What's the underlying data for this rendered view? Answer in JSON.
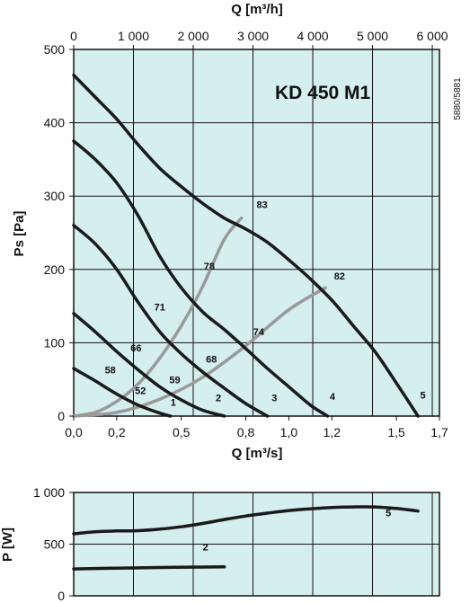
{
  "chart_data": [
    {
      "type": "line",
      "title": "KD 450 M1",
      "code": "5880/5881",
      "xlabel": "Q [m³/s]",
      "ylabel": "Ps [Pa]",
      "x2label": "Q [m³/h]",
      "xlim": [
        0,
        1.7
      ],
      "ylim": [
        0,
        500
      ],
      "x2lim": [
        0,
        6120
      ],
      "grid": true,
      "xticks": [
        0.0,
        0.2,
        0.5,
        0.8,
        1.0,
        1.2,
        1.5,
        1.7
      ],
      "xtick_labels": [
        "0,0",
        "0,2",
        "0,5",
        "0,8",
        "1,0",
        "1,2",
        "1,5",
        "1,7"
      ],
      "yticks": [
        0,
        100,
        200,
        300,
        400,
        500
      ],
      "ytick_labels": [
        "0",
        "100",
        "200",
        "300",
        "400",
        "500"
      ],
      "x2ticks": [
        0,
        1000,
        2000,
        3000,
        4000,
        5000,
        6000
      ],
      "x2tick_labels": [
        "0",
        "1 000",
        "2 000",
        "3 000",
        "4 000",
        "5 000",
        "6 000"
      ],
      "series": [
        {
          "name": "1",
          "kind": "fan",
          "label_at": [
            0.45,
            14
          ],
          "color": "#1a1a1a",
          "x": [
            0.0,
            0.1,
            0.2,
            0.3,
            0.4,
            0.45
          ],
          "y": [
            65,
            48,
            30,
            15,
            4,
            0
          ]
        },
        {
          "name": "2",
          "kind": "fan",
          "label_at": [
            0.66,
            20
          ],
          "color": "#1a1a1a",
          "x": [
            0.0,
            0.1,
            0.2,
            0.3,
            0.4,
            0.5,
            0.6,
            0.7
          ],
          "y": [
            140,
            115,
            88,
            63,
            40,
            22,
            8,
            0
          ]
        },
        {
          "name": "3",
          "kind": "fan",
          "label_at": [
            0.92,
            20
          ],
          "color": "#1a1a1a",
          "x": [
            0.0,
            0.1,
            0.2,
            0.3,
            0.4,
            0.5,
            0.6,
            0.7,
            0.8,
            0.9
          ],
          "y": [
            260,
            235,
            200,
            155,
            115,
            85,
            60,
            38,
            17,
            0
          ]
        },
        {
          "name": "4",
          "kind": "fan",
          "label_at": [
            1.19,
            22
          ],
          "color": "#1a1a1a",
          "x": [
            0.0,
            0.1,
            0.2,
            0.3,
            0.4,
            0.5,
            0.6,
            0.7,
            0.8,
            0.9,
            1.0,
            1.1,
            1.18
          ],
          "y": [
            375,
            350,
            318,
            273,
            218,
            175,
            142,
            118,
            92,
            65,
            40,
            15,
            0
          ]
        },
        {
          "name": "5",
          "kind": "fan",
          "label_at": [
            1.61,
            24
          ],
          "color": "#1a1a1a",
          "x": [
            0.0,
            0.1,
            0.2,
            0.3,
            0.4,
            0.5,
            0.6,
            0.7,
            0.8,
            0.9,
            1.0,
            1.1,
            1.2,
            1.3,
            1.4,
            1.5,
            1.6
          ],
          "y": [
            465,
            435,
            405,
            370,
            338,
            313,
            290,
            270,
            255,
            237,
            213,
            187,
            158,
            123,
            88,
            45,
            0
          ]
        },
        {
          "name": "83",
          "kind": "system",
          "label_at": [
            0.85,
            284
          ],
          "color": "#999999",
          "x": [
            0.0,
            0.1,
            0.2,
            0.3,
            0.4,
            0.5,
            0.6,
            0.7,
            0.78
          ],
          "y": [
            0,
            5,
            20,
            44,
            79,
            123,
            177,
            241,
            270
          ]
        },
        {
          "name": "82",
          "kind": "system",
          "label_at": [
            1.21,
            186
          ],
          "color": "#999999",
          "x": [
            0.0,
            0.2,
            0.4,
            0.6,
            0.8,
            1.0,
            1.17
          ],
          "y": [
            0,
            5,
            23,
            53,
            96,
            145,
            175
          ]
        }
      ],
      "annotations": [
        {
          "text": "78",
          "x": 0.63,
          "y": 200
        },
        {
          "text": "71",
          "x": 0.4,
          "y": 144
        },
        {
          "text": "74",
          "x": 0.86,
          "y": 110
        },
        {
          "text": "66",
          "x": 0.29,
          "y": 88
        },
        {
          "text": "68",
          "x": 0.64,
          "y": 73
        },
        {
          "text": "58",
          "x": 0.17,
          "y": 58
        },
        {
          "text": "52",
          "x": 0.31,
          "y": 30
        },
        {
          "text": "59",
          "x": 0.47,
          "y": 45
        }
      ]
    },
    {
      "type": "line",
      "title": "",
      "xlabel": "",
      "ylabel": "P [W]",
      "xlim": [
        0,
        1.7
      ],
      "ylim": [
        0,
        1000
      ],
      "grid": true,
      "yticks": [
        0,
        500,
        1000
      ],
      "ytick_labels": [
        "0",
        "500",
        "1 000"
      ],
      "series": [
        {
          "name": "5",
          "label_at": [
            1.45,
            770
          ],
          "color": "#1a1a1a",
          "x": [
            0.0,
            0.1,
            0.2,
            0.3,
            0.4,
            0.5,
            0.6,
            0.7,
            0.8,
            0.9,
            1.0,
            1.1,
            1.2,
            1.3,
            1.4,
            1.5,
            1.6
          ],
          "y": [
            600,
            620,
            628,
            630,
            645,
            668,
            700,
            738,
            772,
            800,
            825,
            842,
            855,
            860,
            860,
            845,
            820
          ]
        },
        {
          "name": "2",
          "label_at": [
            0.6,
            440
          ],
          "color": "#1a1a1a",
          "x": [
            0.0,
            0.2,
            0.4,
            0.6,
            0.7
          ],
          "y": [
            260,
            268,
            274,
            278,
            280
          ]
        }
      ]
    }
  ]
}
